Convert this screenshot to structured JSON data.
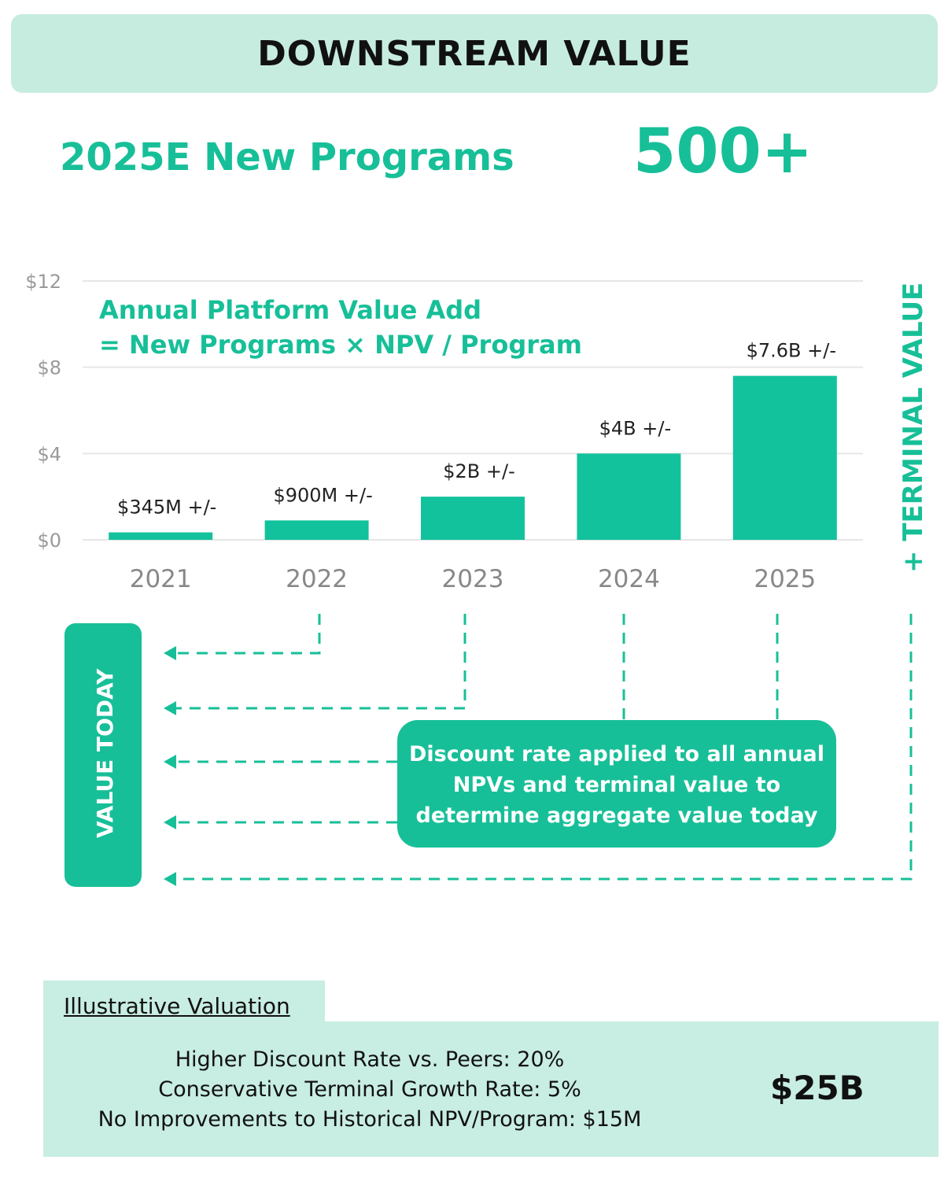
{
  "header": {
    "title": "DOWNSTREAM VALUE"
  },
  "kpi": {
    "label": "2025E New Programs",
    "value": "500+"
  },
  "chart_data": {
    "type": "bar",
    "title": "Annual Platform Value Add",
    "subtitle": "= New Programs × NPV / Program",
    "categories": [
      "2021",
      "2022",
      "2023",
      "2024",
      "2025"
    ],
    "values": [
      0.345,
      0.9,
      2,
      4,
      7.6
    ],
    "data_labels": [
      "$345M +/-",
      "$900M +/-",
      "$2B +/-",
      "$4B +/-",
      "$7.6B +/-"
    ],
    "ylim": [
      0,
      12
    ],
    "yticks": [
      0,
      4,
      8,
      12
    ],
    "ytick_labels": [
      "$0",
      "$4",
      "$8",
      "$12"
    ],
    "grid": true,
    "bar_color": "#12c29c"
  },
  "flow": {
    "terminal_label": "+ TERMINAL VALUE",
    "value_today_label": "VALUE TODAY",
    "discount_note": [
      "Discount rate applied to all annual",
      "NPVs and terminal value to",
      "determine aggregate value today"
    ]
  },
  "valuation": {
    "title": "Illustrative Valuation",
    "lines": [
      "Higher Discount Rate vs. Peers: 20%",
      "Conservative Terminal Growth Rate: 5%",
      "No Improvements to Historical NPV/Program: $15M"
    ],
    "total": "$25B"
  },
  "colors": {
    "accent": "#17bf98",
    "light": "#c6ece0"
  }
}
